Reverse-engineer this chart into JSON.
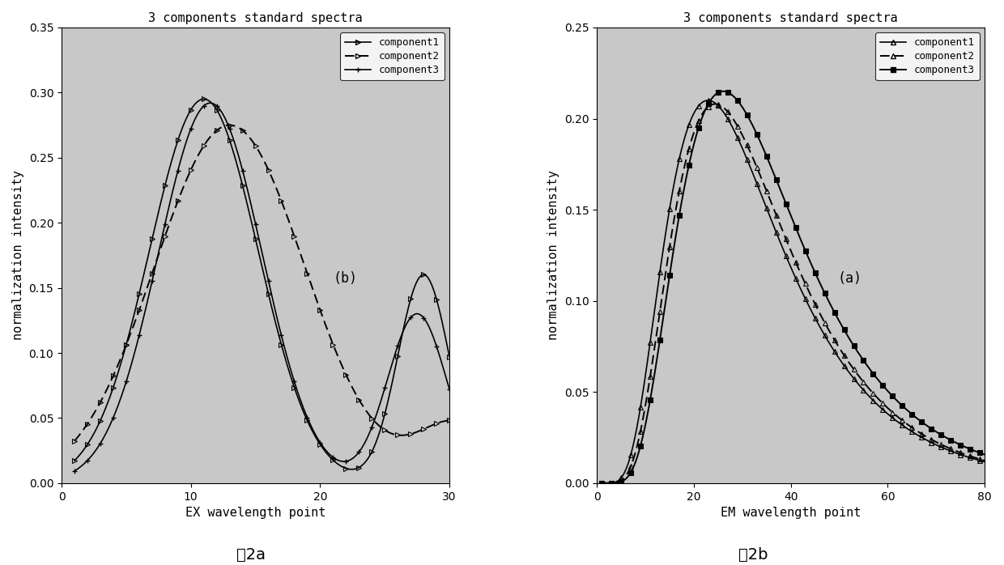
{
  "title": "3 components standard spectra",
  "left_xlabel": "EX wavelength point",
  "left_ylabel": "normalization intensity",
  "right_xlabel": "EM wavelength point",
  "right_ylabel": "normalization intensity",
  "left_label": "(b)",
  "right_label": "(a)",
  "left_xlim": [
    0,
    30
  ],
  "left_ylim": [
    0,
    0.35
  ],
  "left_xticks": [
    0,
    10,
    20,
    30
  ],
  "left_yticks": [
    0,
    0.05,
    0.1,
    0.15,
    0.2,
    0.25,
    0.3,
    0.35
  ],
  "right_xlim": [
    0,
    80
  ],
  "right_ylim": [
    0,
    0.25
  ],
  "right_xticks": [
    0,
    20,
    40,
    60,
    80
  ],
  "right_yticks": [
    0,
    0.05,
    0.1,
    0.15,
    0.2,
    0.25
  ],
  "legend_labels": [
    "component1",
    "component2",
    "component3"
  ],
  "caption_left": "图2a",
  "caption_right": "图2b",
  "bg_color": "#c8c8c8"
}
